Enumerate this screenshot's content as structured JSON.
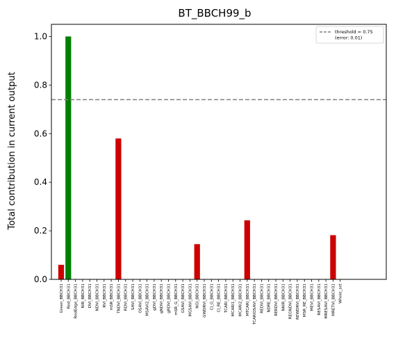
{
  "chart_data": {
    "type": "bar",
    "title": "BT_BBCH99_b",
    "ylabel": "Total contribution in current output",
    "xlabel": "",
    "ylim": [
      0,
      1.05
    ],
    "yticks": [
      0.0,
      0.2,
      0.4,
      0.6,
      0.8,
      1.0
    ],
    "grid": false,
    "categories": [
      "Green_BBCH31",
      "Red_BBCH31",
      "RedEdge_BBCH31",
      "NIR_BBCH31",
      "DVI_BBCH31",
      "NDVI_BBCH31",
      "RVI_BBCH31",
      "mSR_BBCH31",
      "TNDVI_BBCH31",
      "RDVI_BBCH31",
      "SAVI_BBCH31",
      "OSAVI_BBCH31",
      "MSAVI2_BBCH31",
      "gDVI_BBCH31",
      "gNDVI_BBCH31",
      "gRDVI_BBCH31",
      "mSR_G_BBCH31",
      "GSAVI_BBCH31",
      "MGSAVI_BBCH31",
      "NGI_BBCH31",
      "GWDRVI_BBCH31",
      "CI_G_BBCH31",
      "CI_RE_BBCH31",
      "TCARI_BBCH31",
      "MCARI1_BBCH31",
      "MCARI2_BBCH31",
      "MTCARI_BBCH31",
      "TCARIOSAVI_BBCH31",
      "REDVI_BBCH31",
      "NDRE_BBCH31",
      "RERDVI_BBCH31",
      "NNIR_BBCH31",
      "REGNDVI_BBCH31",
      "REWDRVI_BBCH31",
      "MSR_RE_BBCH31",
      "MEVI_BBCH31",
      "RESAVI_BBCH31",
      "MRESAVI_BBCH31",
      "MRETVI_BBCH31",
      "Whole_set"
    ],
    "values": [
      0.06,
      1.0,
      0,
      0,
      0,
      0,
      0,
      0,
      0.58,
      0,
      0,
      0,
      0,
      0,
      0,
      0,
      0,
      0,
      0,
      0.145,
      0,
      0,
      0,
      0,
      0,
      0,
      0.243,
      0,
      0,
      0,
      0,
      0,
      0,
      0,
      0,
      0,
      0,
      0,
      0.182,
      0
    ],
    "bar_colors": [
      "#cc0000",
      "#008000",
      "#cc0000",
      "#cc0000",
      "#cc0000",
      "#cc0000",
      "#cc0000",
      "#cc0000",
      "#cc0000",
      "#cc0000",
      "#cc0000",
      "#cc0000",
      "#cc0000",
      "#cc0000",
      "#cc0000",
      "#cc0000",
      "#cc0000",
      "#cc0000",
      "#cc0000",
      "#cc0000",
      "#cc0000",
      "#cc0000",
      "#cc0000",
      "#cc0000",
      "#cc0000",
      "#cc0000",
      "#cc0000",
      "#cc0000",
      "#cc0000",
      "#cc0000",
      "#cc0000",
      "#cc0000",
      "#cc0000",
      "#cc0000",
      "#cc0000",
      "#cc0000",
      "#cc0000",
      "#cc0000",
      "#cc0000",
      "#cc0000"
    ],
    "threshold": {
      "value": 0.74,
      "color": "#808080"
    },
    "legend": {
      "placement": "top-right",
      "entries": [
        {
          "label": "threshold = 0.75",
          "sublabel": "(error: 0.01)"
        }
      ]
    }
  }
}
